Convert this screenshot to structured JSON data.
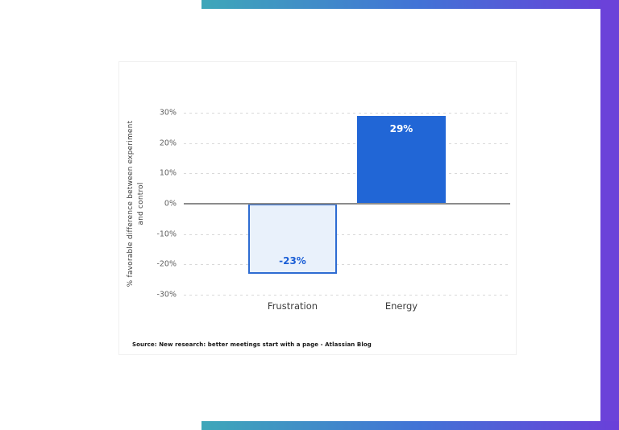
{
  "decor": {
    "gradient_start": "#3EA7B9",
    "gradient_mid": "#4273D6",
    "gradient_end": "#6A3FD9",
    "right_strip_color": "#6B42D9"
  },
  "chart_data": {
    "type": "bar",
    "categories": [
      "Frustration",
      "Energy"
    ],
    "values": [
      -23,
      29
    ],
    "value_labels": [
      "-23%",
      "29%"
    ],
    "title": "",
    "xlabel": "",
    "ylabel": "% favorable difference between experiment and control",
    "ylabel_lines": [
      "% favorable difference between experiment",
      "and control"
    ],
    "ylim": [
      -30,
      30
    ],
    "yticks": [
      30,
      20,
      10,
      0,
      -10,
      -20,
      -30
    ],
    "ytick_suffix": "%",
    "grid": "horizontal-dashed",
    "legend": "none",
    "bar_style": [
      {
        "fill": "#E9F1FB",
        "border": "#2E6CD2",
        "label_color": "#1C5FD6"
      },
      {
        "fill": "#2166D6",
        "border": "none",
        "label_color": "#FFFFFF"
      }
    ]
  },
  "source": {
    "text": "Source: New research: better meetings start with a page - Atlassian Blog"
  }
}
